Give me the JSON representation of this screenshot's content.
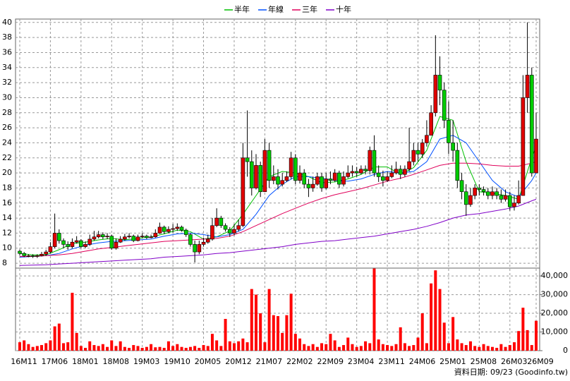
{
  "chart_data": {
    "type": "candlestick",
    "legend": "top",
    "grid": true,
    "up_color": "#e00000",
    "down_color": "#00cc00",
    "volume_color": "#ff0000",
    "footer": "資料日期: 09/23 (Goodinfo.tw)",
    "categories": [
      "16M11",
      null,
      null,
      null,
      null,
      null,
      null,
      "17M06",
      null,
      null,
      null,
      null,
      null,
      null,
      "18M01",
      null,
      null,
      null,
      null,
      null,
      null,
      "18M08",
      null,
      null,
      null,
      null,
      null,
      null,
      "19M03",
      null,
      null,
      null,
      null,
      null,
      null,
      "19M10",
      null,
      null,
      null,
      null,
      null,
      null,
      "20M05",
      null,
      null,
      null,
      null,
      null,
      null,
      "20M12",
      null,
      null,
      null,
      null,
      null,
      null,
      "21M07",
      null,
      null,
      null,
      null,
      null,
      null,
      "22M02",
      null,
      null,
      null,
      null,
      null,
      null,
      "22M09",
      null,
      null,
      null,
      null,
      null,
      null,
      "23M04",
      null,
      null,
      null,
      null,
      null,
      null,
      "23M11",
      null,
      null,
      null,
      null,
      null,
      null,
      "24M06",
      null,
      null,
      null,
      null,
      null,
      null,
      "25M01",
      null,
      null,
      null,
      null,
      null,
      null,
      "25M08",
      null,
      null,
      null,
      null,
      null,
      null,
      "26M03",
      null,
      null,
      null,
      null,
      null,
      "26M09"
    ],
    "open": [
      9.6,
      9.3,
      9.0,
      9.0,
      8.9,
      9.0,
      9.2,
      9.5,
      10.2,
      12.0,
      11.0,
      10.5,
      10.2,
      10.8,
      11.0,
      10.2,
      10.5,
      11.2,
      11.5,
      11.8,
      11.5,
      11.6,
      10.0,
      10.8,
      11.2,
      11.5,
      11.6,
      11.0,
      11.5,
      11.6,
      11.4,
      11.5,
      12.0,
      12.8,
      12.2,
      12.5,
      12.6,
      12.8,
      12.4,
      11.8,
      10.5,
      9.5,
      10.5,
      10.8,
      11.2,
      13.0,
      14.0,
      13.0,
      12.5,
      12.0,
      12.5,
      13.0,
      22.0,
      21.5,
      18.0,
      21.0,
      17.5,
      23.0,
      19.0,
      19.5,
      18.5,
      19.0,
      19.5,
      22.0,
      19.0,
      20.0,
      18.5,
      18.0,
      18.5,
      19.5,
      18.0,
      19.2,
      19.0,
      20.0,
      18.5,
      19.5,
      20.0,
      20.2,
      20.0,
      20.5,
      20.3,
      23.0,
      20.0,
      19.5,
      19.0,
      19.5,
      20.0,
      20.5,
      19.8,
      20.5,
      21.5,
      23.0,
      22.5,
      24.0,
      25.0,
      28.0,
      33.0,
      31.0,
      27.0,
      24.0,
      23.0,
      19.0,
      17.5,
      15.8,
      17.0,
      18.0,
      17.8,
      17.5,
      17.0,
      17.5,
      17.0,
      16.5,
      17.0,
      15.5,
      16.0,
      17.0,
      30.0,
      33.0,
      20.0
    ],
    "high": [
      9.8,
      9.5,
      9.2,
      9.2,
      9.2,
      9.5,
      9.8,
      10.8,
      14.6,
      12.5,
      11.3,
      10.9,
      11.3,
      11.6,
      11.2,
      10.9,
      11.8,
      12.3,
      12.3,
      12.1,
      12.0,
      11.8,
      11.3,
      11.6,
      11.9,
      12.0,
      11.8,
      11.8,
      12.0,
      11.8,
      11.8,
      12.5,
      13.4,
      13.0,
      12.9,
      13.2,
      13.3,
      13.0,
      12.6,
      12.0,
      11.0,
      11.0,
      11.4,
      11.8,
      14.0,
      15.3,
      14.3,
      13.3,
      12.8,
      13.2,
      13.8,
      24.0,
      28.3,
      23.0,
      22.5,
      21.5,
      24.5,
      24.0,
      21.0,
      20.5,
      20.0,
      20.2,
      22.8,
      22.5,
      21.0,
      20.5,
      19.2,
      19.5,
      20.0,
      20.0,
      20.0,
      20.2,
      20.5,
      20.3,
      20.2,
      21.0,
      21.0,
      20.8,
      21.0,
      21.0,
      23.5,
      25.0,
      21.0,
      20.3,
      20.2,
      21.0,
      21.5,
      21.0,
      21.0,
      26.0,
      24.0,
      24.0,
      24.5,
      27.0,
      29.0,
      38.3,
      35.5,
      32.0,
      29.5,
      27.0,
      24.0,
      20.0,
      18.5,
      18.0,
      18.5,
      18.5,
      18.2,
      18.0,
      18.2,
      18.0,
      17.8,
      17.8,
      17.5,
      17.0,
      19.0,
      33.0,
      40.0,
      34.0,
      28.0
    ],
    "low": [
      9.0,
      8.8,
      8.8,
      8.7,
      8.7,
      8.9,
      9.0,
      9.3,
      10.0,
      10.6,
      10.0,
      9.8,
      10.0,
      10.6,
      10.0,
      10.0,
      10.3,
      11.0,
      11.3,
      11.2,
      11.2,
      9.8,
      9.8,
      10.7,
      11.0,
      11.3,
      10.8,
      10.9,
      11.3,
      11.2,
      11.3,
      11.4,
      11.9,
      11.9,
      12.0,
      12.1,
      12.3,
      12.2,
      11.5,
      10.2,
      8.1,
      9.2,
      10.2,
      10.6,
      11.0,
      12.8,
      12.7,
      12.2,
      11.5,
      11.7,
      12.2,
      12.8,
      19.5,
      17.0,
      17.8,
      16.8,
      17.5,
      18.0,
      18.5,
      17.8,
      18.2,
      18.8,
      19.2,
      18.5,
      18.6,
      18.0,
      16.8,
      17.5,
      18.3,
      17.5,
      17.8,
      18.5,
      18.8,
      18.0,
      18.2,
      19.3,
      19.5,
      19.5,
      19.8,
      19.8,
      19.8,
      19.5,
      18.8,
      18.2,
      18.8,
      19.3,
      19.8,
      19.2,
      19.5,
      20.2,
      21.0,
      21.5,
      22.0,
      23.5,
      25.0,
      27.5,
      29.0,
      26.0,
      22.5,
      21.5,
      18.0,
      16.5,
      14.3,
      15.5,
      16.5,
      17.0,
      17.0,
      16.5,
      16.5,
      16.5,
      16.0,
      16.2,
      15.0,
      15.0,
      15.8,
      17.0,
      28.0,
      19.5,
      20.0
    ],
    "close": [
      9.3,
      9.0,
      9.0,
      8.9,
      9.0,
      9.2,
      9.5,
      10.2,
      12.0,
      11.0,
      10.5,
      10.2,
      10.8,
      11.0,
      10.2,
      10.5,
      11.2,
      11.5,
      11.8,
      11.5,
      11.6,
      10.0,
      10.8,
      11.2,
      11.5,
      11.6,
      11.0,
      11.5,
      11.6,
      11.4,
      11.5,
      12.0,
      12.8,
      12.2,
      12.5,
      12.6,
      12.8,
      12.4,
      11.8,
      10.5,
      9.5,
      10.5,
      10.8,
      11.2,
      13.0,
      14.0,
      13.0,
      12.5,
      12.0,
      12.5,
      13.0,
      22.0,
      21.5,
      18.0,
      21.0,
      17.5,
      23.0,
      19.0,
      19.5,
      18.5,
      19.0,
      19.5,
      22.0,
      19.0,
      20.0,
      18.5,
      18.0,
      18.5,
      19.5,
      18.0,
      19.2,
      19.0,
      20.0,
      18.5,
      19.5,
      20.0,
      20.2,
      20.0,
      20.5,
      20.3,
      23.0,
      20.0,
      19.5,
      19.0,
      19.5,
      20.0,
      20.5,
      19.8,
      20.5,
      21.5,
      23.0,
      22.5,
      24.0,
      25.0,
      28.0,
      33.0,
      31.0,
      27.0,
      24.0,
      23.0,
      19.0,
      17.5,
      15.8,
      17.0,
      18.0,
      17.8,
      17.5,
      17.0,
      17.5,
      17.0,
      16.5,
      17.0,
      15.5,
      16.0,
      17.0,
      30.0,
      33.0,
      20.0,
      24.5
    ],
    "volume": [
      4500,
      5500,
      3500,
      2000,
      2500,
      3000,
      4000,
      5500,
      13000,
      14500,
      4000,
      4500,
      31000,
      9500,
      2500,
      1500,
      5000,
      3000,
      2500,
      3500,
      2000,
      5500,
      2500,
      5000,
      2000,
      1500,
      3000,
      2500,
      1500,
      2000,
      3500,
      1800,
      2000,
      1500,
      5000,
      2500,
      3500,
      2000,
      1500,
      2000,
      2500,
      1500,
      3000,
      2500,
      9000,
      5500,
      2500,
      17000,
      5000,
      4000,
      5000,
      6500,
      4500,
      33000,
      30000,
      20000,
      4500,
      33000,
      19000,
      18500,
      9500,
      19000,
      30500,
      9000,
      6500,
      3500,
      2500,
      3500,
      2000,
      4000,
      3500,
      9000,
      5500,
      2000,
      3000,
      7000,
      3500,
      2000,
      2500,
      5000,
      4000,
      44000,
      6000,
      3500,
      3000,
      2500,
      3500,
      12500,
      4000,
      2500,
      3000,
      7000,
      20000,
      4000,
      36000,
      43000,
      33000,
      15000,
      4000,
      18000,
      6000,
      4000,
      3000,
      5000,
      2500,
      2000,
      3500,
      2500,
      2000,
      1500,
      3500,
      2000,
      3000,
      4500,
      10500,
      23000,
      11000,
      3000,
      16000
    ],
    "series": [
      {
        "name": "半年",
        "color": "#00c000",
        "x": [
          0,
          3,
          6,
          9,
          12,
          15,
          18,
          21,
          24,
          27,
          30,
          33,
          36,
          39,
          42,
          45,
          48,
          51,
          54,
          57,
          60,
          63,
          66,
          69,
          72,
          75,
          78,
          81,
          84,
          87,
          90,
          93,
          96,
          99,
          102,
          105,
          108,
          111,
          114,
          117,
          118
        ],
        "values": [
          9.3,
          9.1,
          9.1,
          9.8,
          10.6,
          10.8,
          11.1,
          11.3,
          11.1,
          11.3,
          11.5,
          11.9,
          12.4,
          12.2,
          11.2,
          11.5,
          12.3,
          14.5,
          17.0,
          19.5,
          20.2,
          20.0,
          19.5,
          18.7,
          18.8,
          19.2,
          19.8,
          20.8,
          20.8,
          19.8,
          20.7,
          23.0,
          27.5,
          27.0,
          21.5,
          17.5,
          17.3,
          17.0,
          16.5,
          22.0,
          23.5
        ]
      },
      {
        "name": "年線",
        "color": "#0050ff",
        "x": [
          0,
          3,
          6,
          9,
          12,
          15,
          18,
          21,
          24,
          27,
          30,
          33,
          36,
          39,
          42,
          45,
          48,
          51,
          54,
          57,
          60,
          63,
          66,
          69,
          72,
          75,
          78,
          81,
          84,
          87,
          90,
          93,
          96,
          99,
          102,
          105,
          108,
          111,
          114,
          117,
          118
        ],
        "values": [
          8.8,
          8.9,
          9.0,
          9.3,
          9.9,
          10.4,
          10.7,
          10.9,
          11.0,
          11.1,
          11.2,
          11.6,
          11.9,
          12.0,
          11.8,
          11.5,
          11.8,
          12.5,
          14.5,
          17.0,
          18.5,
          19.5,
          19.5,
          19.3,
          19.0,
          18.9,
          19.2,
          19.8,
          20.2,
          20.0,
          20.2,
          21.5,
          24.5,
          25.0,
          24.0,
          21.5,
          19.0,
          17.5,
          16.8,
          19.0,
          20.0
        ]
      },
      {
        "name": "三年",
        "color": "#e0005a",
        "x": [
          0,
          3,
          6,
          9,
          12,
          15,
          18,
          21,
          24,
          27,
          30,
          33,
          36,
          39,
          42,
          45,
          48,
          51,
          54,
          57,
          60,
          63,
          66,
          69,
          72,
          75,
          78,
          81,
          84,
          87,
          90,
          93,
          96,
          99,
          102,
          105,
          108,
          111,
          114,
          117,
          118
        ],
        "values": [
          8.9,
          8.9,
          9.0,
          9.1,
          9.3,
          9.6,
          9.9,
          10.1,
          10.3,
          10.5,
          10.7,
          10.9,
          11.0,
          11.1,
          11.2,
          11.3,
          11.6,
          12.2,
          13.0,
          13.8,
          14.6,
          15.3,
          16.0,
          16.6,
          17.1,
          17.5,
          17.9,
          18.4,
          18.9,
          19.3,
          19.8,
          20.4,
          21.0,
          21.3,
          21.3,
          21.2,
          21.0,
          20.9,
          20.9,
          21.3,
          21.5
        ]
      },
      {
        "name": "十年",
        "color": "#8000c8",
        "x": [
          0,
          3,
          6,
          9,
          12,
          15,
          18,
          21,
          24,
          27,
          30,
          33,
          36,
          39,
          42,
          45,
          48,
          51,
          54,
          57,
          60,
          63,
          66,
          69,
          72,
          75,
          78,
          81,
          84,
          87,
          90,
          93,
          96,
          99,
          102,
          105,
          108,
          111,
          114,
          117,
          118
        ],
        "values": [
          7.7,
          7.75,
          7.8,
          7.9,
          8.0,
          8.1,
          8.2,
          8.3,
          8.4,
          8.5,
          8.6,
          8.8,
          8.9,
          9.0,
          9.1,
          9.3,
          9.4,
          9.6,
          9.8,
          10.0,
          10.2,
          10.5,
          10.7,
          10.9,
          11.0,
          11.2,
          11.4,
          11.6,
          11.9,
          12.2,
          12.5,
          12.9,
          13.4,
          14.0,
          14.4,
          14.6,
          14.9,
          15.2,
          15.6,
          16.3,
          16.5
        ]
      }
    ],
    "ylim": [
      7.35,
      40.45
    ],
    "yticks": [
      8,
      10,
      12,
      14,
      16,
      18,
      20,
      22,
      24,
      26,
      28,
      30,
      32,
      34,
      36,
      38,
      40
    ],
    "y2lim": [
      0,
      44200
    ],
    "y2ticks": [
      0,
      {
        "value": 10000,
        "label": "10,000"
      },
      {
        "value": 20000,
        "label": "20,000"
      },
      {
        "value": 30000,
        "label": "30,000"
      },
      {
        "value": 40000,
        "label": "40,000"
      }
    ]
  }
}
